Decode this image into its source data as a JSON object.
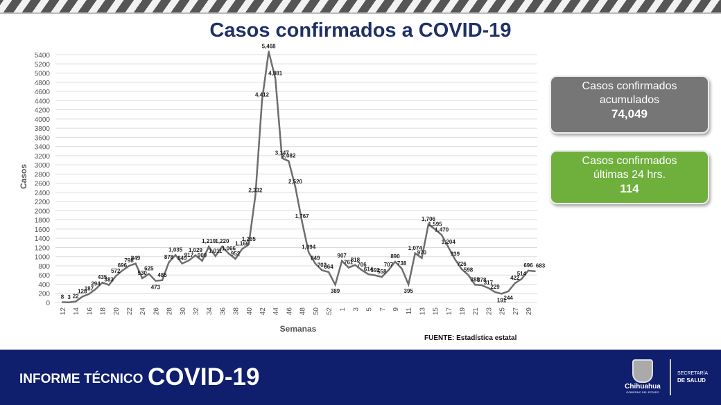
{
  "title": "Casos confirmados a COVID-19",
  "cards": {
    "accumulated": {
      "label_line1": "Casos confirmados",
      "label_line2": "acumulados",
      "value": "74,049",
      "color": "#767676"
    },
    "last24": {
      "label_line1": "Casos confirmados",
      "label_line2": "últimas 24 hrs.",
      "value": "114",
      "color": "#6fb03d"
    }
  },
  "source": "FUENTE: Estadística estatal",
  "footer": {
    "left_small": "INFORME TÉCNICO",
    "left_big": "COVID-19",
    "logo_name": "Chihuahua",
    "logo_sub": "GOBIERNO DEL ESTADO",
    "dept_line1": "SECRETARÍA",
    "dept_line2": "DE SALUD",
    "color": "#0f1f6e"
  },
  "chart_data": {
    "type": "line",
    "title": "",
    "xlabel": "Semanas",
    "ylabel": "Casos",
    "ylim": [
      0,
      5400
    ],
    "ytick_step": 200,
    "grid": true,
    "line_color": "#6d6d6d",
    "x": [
      12,
      13,
      14,
      15,
      16,
      17,
      18,
      19,
      20,
      21,
      22,
      23,
      24,
      25,
      26,
      27,
      28,
      29,
      30,
      31,
      32,
      33,
      34,
      35,
      36,
      37,
      38,
      39,
      40,
      41,
      42,
      43,
      44,
      45,
      46,
      47,
      48,
      49,
      50,
      51,
      52,
      53,
      1,
      2,
      3,
      4,
      5,
      6,
      7,
      8,
      9,
      10,
      11,
      12,
      13,
      14,
      15,
      16,
      17,
      18,
      19,
      20,
      21,
      22,
      23,
      24,
      25,
      26,
      27,
      28,
      29,
      30
    ],
    "values": [
      8,
      3,
      22,
      128,
      187,
      294,
      435,
      383,
      572,
      696,
      798,
      849,
      530,
      625,
      473,
      485,
      878,
      1035,
      849,
      917,
      1029,
      909,
      1219,
      1011,
      1220,
      1066,
      952,
      1166,
      1265,
      2332,
      4412,
      5468,
      4881,
      3147,
      3082,
      2520,
      1767,
      1094,
      849,
      703,
      664,
      389,
      907,
      761,
      818,
      706,
      614,
      592,
      558,
      707,
      890,
      738,
      395,
      1074,
      970,
      1706,
      1595,
      1470,
      1204,
      939,
      726,
      598,
      388,
      378,
      317,
      229,
      191,
      244,
      422,
      514,
      696,
      683
    ],
    "data_labels": [
      "8",
      "3",
      "22",
      "128",
      "187",
      "294",
      "435",
      "383",
      "572",
      "696",
      "798",
      "849",
      "530",
      "625",
      "473",
      "485",
      "878",
      "1,035",
      "849",
      "917",
      "1,029",
      "909",
      "1,219",
      "1,011",
      "1,220",
      "1,066",
      "952",
      "1,166",
      "1,265",
      "2,332",
      "4,412",
      "5,468",
      "4,881",
      "3,147",
      "3,082",
      "2,520",
      "1,767",
      "1,094",
      "849",
      "703",
      "664",
      "389",
      "907",
      "761",
      "818",
      "706",
      "614",
      "592",
      "558",
      "707",
      "890",
      "738",
      "395",
      "1,074",
      "970",
      "1,706",
      "1,595",
      "1,470",
      "1,204",
      "939",
      "726",
      "598",
      "388",
      "378",
      "317",
      "229",
      "191",
      "244",
      "422",
      "514",
      "696",
      "683"
    ]
  }
}
